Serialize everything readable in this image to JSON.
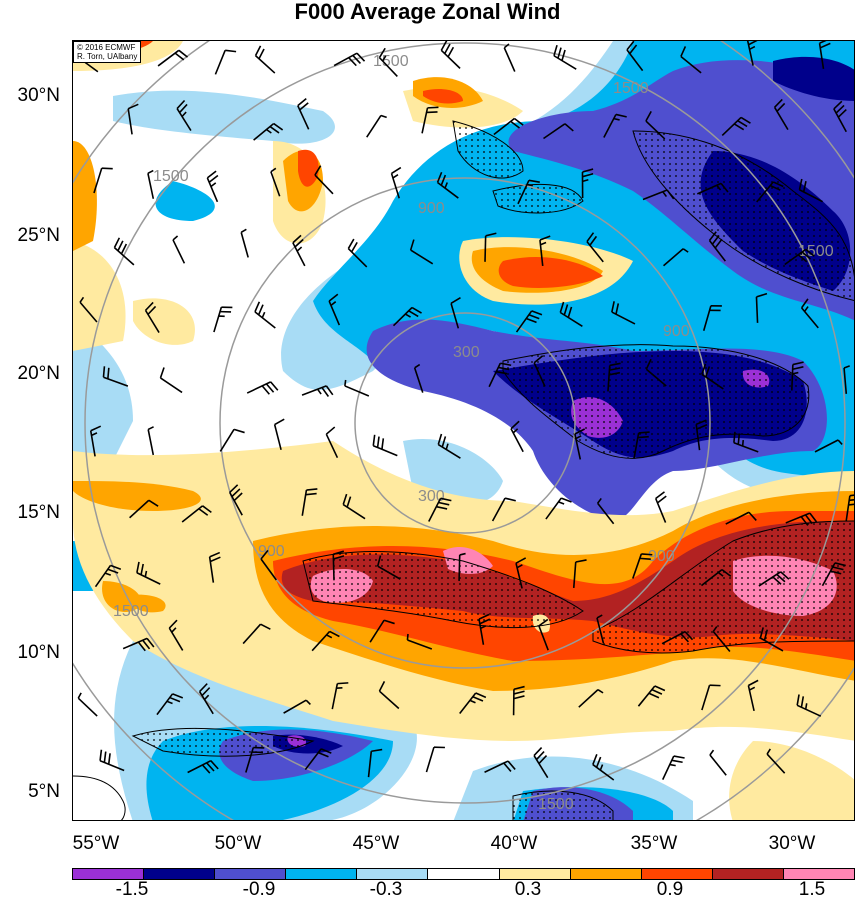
{
  "title": "F000 Average Zonal Wind",
  "credit": {
    "line1": "© 2016 ECMWF",
    "line2": "R. Torn, UAlbany"
  },
  "lat_labels": [
    "30°N",
    "25°N",
    "20°N",
    "15°N",
    "10°N",
    "5°N"
  ],
  "lon_labels": [
    "55°W",
    "50°W",
    "45°W",
    "40°W",
    "35°W",
    "30°W"
  ],
  "range_rings": {
    "units_hidden": true,
    "labels": [
      "300",
      "900",
      "1500"
    ]
  },
  "colorbar": {
    "colors": [
      "#9b30d6",
      "#00008b",
      "#4f4fcf",
      "#00b4f0",
      "#a8dcf5",
      "#ffffff",
      "#ffeaa0",
      "#ffa500",
      "#ff4500",
      "#b22222",
      "#ff85b4"
    ],
    "labels": [
      "-1.5",
      "-0.9",
      "-0.3",
      "0.3",
      "0.9",
      "1.5"
    ]
  },
  "colors": {
    "purple": "#9b30d6",
    "navy": "#00008b",
    "blue": "#4f4fcf",
    "cyan": "#00b4f0",
    "lightblue": "#a8dcf5",
    "white": "#ffffff",
    "yellow": "#ffeaa0",
    "orange": "#ffa500",
    "redorange": "#ff4500",
    "darkred": "#b22222",
    "pink": "#ff85b4"
  }
}
